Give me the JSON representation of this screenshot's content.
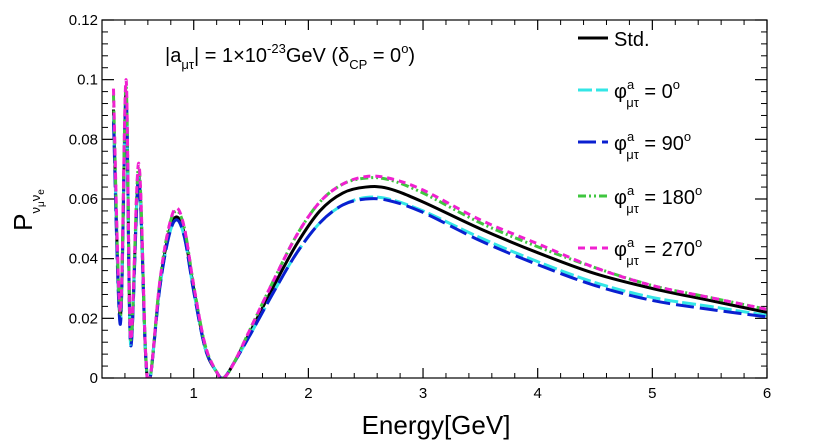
{
  "chart_data": {
    "type": "line",
    "xlabel": "Energy[GeV]",
    "ylabel": {
      "main": "P",
      "sub1": "ν",
      "sub1sub": "μ",
      "sub2": "ν",
      "sub2sub": "e"
    },
    "xlim": [
      0.2,
      6.0
    ],
    "ylim": [
      0.0,
      0.12
    ],
    "x_ticks": [
      1,
      2,
      3,
      4,
      5,
      6
    ],
    "x_tick_labels": [
      "1",
      "2",
      "3",
      "4",
      "5",
      "6"
    ],
    "y_ticks": [
      0,
      0.02,
      0.04,
      0.06,
      0.08,
      0.1,
      0.12
    ],
    "y_tick_labels": [
      "0",
      "0.02",
      "0.04",
      "0.06",
      "0.08",
      "0.1",
      "0.12"
    ],
    "annotation": {
      "pre": "|a",
      "sub": "μτ",
      "mid": "| = 1",
      "times": "×",
      "base": "10",
      "exp": "-23",
      "unit": "GeV (δ",
      "cp": "CP",
      "eq": " = 0",
      "deg": "o",
      "close": ")"
    },
    "legend": {
      "position": "top-right",
      "entries": [
        {
          "label": "Std.",
          "phi": "",
          "sup": "",
          "sub": "",
          "value": "",
          "deg": ""
        },
        {
          "label": "",
          "phi": "φ",
          "sup": "a",
          "sub": "μτ",
          "value": " = 0",
          "deg": "o"
        },
        {
          "label": "",
          "phi": "φ",
          "sup": "a",
          "sub": "μτ",
          "value": " = 90",
          "deg": "o"
        },
        {
          "label": "",
          "phi": "φ",
          "sup": "a",
          "sub": "μτ",
          "value": " = 180",
          "deg": "o"
        },
        {
          "label": "",
          "phi": "φ",
          "sup": "a",
          "sub": "μτ",
          "value": " = 270",
          "deg": "o"
        }
      ]
    },
    "series": [
      {
        "name": "Std.",
        "color": "#000000",
        "dash": "",
        "points": [
          [
            0.3,
            0.09
          ],
          [
            0.36,
            0.02
          ],
          [
            0.41,
            0.095
          ],
          [
            0.45,
            0.012
          ],
          [
            0.52,
            0.068
          ],
          [
            0.58,
            0.008
          ],
          [
            0.62,
            0.0
          ],
          [
            0.7,
            0.03
          ],
          [
            0.78,
            0.048
          ],
          [
            0.85,
            0.054
          ],
          [
            0.92,
            0.048
          ],
          [
            1.0,
            0.03
          ],
          [
            1.1,
            0.01
          ],
          [
            1.2,
            0.002
          ],
          [
            1.26,
            0.0
          ],
          [
            1.35,
            0.005
          ],
          [
            1.5,
            0.016
          ],
          [
            1.7,
            0.031
          ],
          [
            1.9,
            0.045
          ],
          [
            2.1,
            0.056
          ],
          [
            2.3,
            0.062
          ],
          [
            2.5,
            0.064
          ],
          [
            2.7,
            0.0635
          ],
          [
            3.0,
            0.059
          ],
          [
            3.5,
            0.05
          ],
          [
            4.0,
            0.042
          ],
          [
            4.5,
            0.035
          ],
          [
            5.0,
            0.03
          ],
          [
            5.5,
            0.026
          ],
          [
            6.0,
            0.022
          ]
        ]
      },
      {
        "name": "phi=0",
        "color": "#33e6e6",
        "dash": "14,4",
        "points": [
          [
            0.3,
            0.088
          ],
          [
            0.36,
            0.019
          ],
          [
            0.41,
            0.094
          ],
          [
            0.45,
            0.011
          ],
          [
            0.52,
            0.067
          ],
          [
            0.58,
            0.008
          ],
          [
            0.62,
            0.0
          ],
          [
            0.7,
            0.029
          ],
          [
            0.78,
            0.047
          ],
          [
            0.85,
            0.053
          ],
          [
            0.92,
            0.047
          ],
          [
            1.0,
            0.029
          ],
          [
            1.1,
            0.01
          ],
          [
            1.2,
            0.002
          ],
          [
            1.26,
            0.0
          ],
          [
            1.35,
            0.005
          ],
          [
            1.5,
            0.015
          ],
          [
            1.7,
            0.029
          ],
          [
            1.9,
            0.042
          ],
          [
            2.1,
            0.052
          ],
          [
            2.3,
            0.058
          ],
          [
            2.5,
            0.0605
          ],
          [
            2.7,
            0.06
          ],
          [
            3.0,
            0.056
          ],
          [
            3.5,
            0.047
          ],
          [
            4.0,
            0.039
          ],
          [
            4.5,
            0.032
          ],
          [
            5.0,
            0.027
          ],
          [
            5.5,
            0.024
          ],
          [
            6.0,
            0.021
          ]
        ]
      },
      {
        "name": "phi=90",
        "color": "#0a1fd0",
        "dash": "18,6",
        "points": [
          [
            0.3,
            0.086
          ],
          [
            0.36,
            0.018
          ],
          [
            0.41,
            0.093
          ],
          [
            0.45,
            0.011
          ],
          [
            0.52,
            0.066
          ],
          [
            0.58,
            0.008
          ],
          [
            0.62,
            0.0
          ],
          [
            0.7,
            0.029
          ],
          [
            0.78,
            0.047
          ],
          [
            0.85,
            0.053
          ],
          [
            0.92,
            0.047
          ],
          [
            1.0,
            0.029
          ],
          [
            1.1,
            0.01
          ],
          [
            1.2,
            0.002
          ],
          [
            1.26,
            0.0
          ],
          [
            1.35,
            0.005
          ],
          [
            1.5,
            0.015
          ],
          [
            1.7,
            0.029
          ],
          [
            1.9,
            0.042
          ],
          [
            2.1,
            0.052
          ],
          [
            2.3,
            0.058
          ],
          [
            2.5,
            0.06
          ],
          [
            2.7,
            0.0595
          ],
          [
            3.0,
            0.0555
          ],
          [
            3.5,
            0.046
          ],
          [
            4.0,
            0.038
          ],
          [
            4.5,
            0.031
          ],
          [
            5.0,
            0.026
          ],
          [
            5.5,
            0.023
          ],
          [
            6.0,
            0.0205
          ]
        ]
      },
      {
        "name": "phi=180",
        "color": "#3fc63f",
        "dash": "8,3,2,3,2,3",
        "points": [
          [
            0.3,
            0.095
          ],
          [
            0.36,
            0.021
          ],
          [
            0.41,
            0.098
          ],
          [
            0.45,
            0.013
          ],
          [
            0.52,
            0.071
          ],
          [
            0.58,
            0.009
          ],
          [
            0.62,
            0.0
          ],
          [
            0.7,
            0.031
          ],
          [
            0.78,
            0.05
          ],
          [
            0.85,
            0.056
          ],
          [
            0.92,
            0.05
          ],
          [
            1.0,
            0.031
          ],
          [
            1.1,
            0.011
          ],
          [
            1.2,
            0.002
          ],
          [
            1.26,
            0.0
          ],
          [
            1.35,
            0.005
          ],
          [
            1.5,
            0.017
          ],
          [
            1.7,
            0.033
          ],
          [
            1.9,
            0.048
          ],
          [
            2.1,
            0.059
          ],
          [
            2.3,
            0.065
          ],
          [
            2.5,
            0.067
          ],
          [
            2.7,
            0.0665
          ],
          [
            3.0,
            0.062
          ],
          [
            3.5,
            0.052
          ],
          [
            4.0,
            0.044
          ],
          [
            4.5,
            0.037
          ],
          [
            5.0,
            0.031
          ],
          [
            5.5,
            0.027
          ],
          [
            6.0,
            0.023
          ]
        ]
      },
      {
        "name": "phi=270",
        "color": "#f020d0",
        "dash": "7,5",
        "points": [
          [
            0.3,
            0.097
          ],
          [
            0.36,
            0.022
          ],
          [
            0.41,
            0.1
          ],
          [
            0.45,
            0.013
          ],
          [
            0.52,
            0.072
          ],
          [
            0.58,
            0.009
          ],
          [
            0.62,
            0.0
          ],
          [
            0.7,
            0.031
          ],
          [
            0.78,
            0.05
          ],
          [
            0.85,
            0.057
          ],
          [
            0.92,
            0.05
          ],
          [
            1.0,
            0.031
          ],
          [
            1.1,
            0.011
          ],
          [
            1.2,
            0.002
          ],
          [
            1.26,
            0.0
          ],
          [
            1.35,
            0.005
          ],
          [
            1.5,
            0.017
          ],
          [
            1.7,
            0.033
          ],
          [
            1.9,
            0.048
          ],
          [
            2.1,
            0.059
          ],
          [
            2.3,
            0.065
          ],
          [
            2.5,
            0.0675
          ],
          [
            2.7,
            0.067
          ],
          [
            3.0,
            0.063
          ],
          [
            3.5,
            0.053
          ],
          [
            4.0,
            0.045
          ],
          [
            4.5,
            0.037
          ],
          [
            5.0,
            0.031
          ],
          [
            5.5,
            0.027
          ],
          [
            6.0,
            0.023
          ]
        ]
      }
    ]
  }
}
